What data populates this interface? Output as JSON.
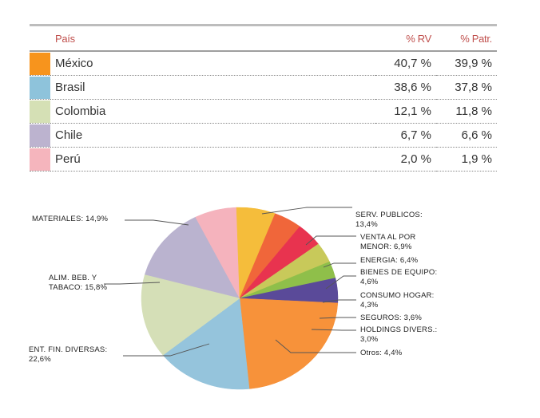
{
  "table": {
    "headers": {
      "country": "País",
      "rv": "% RV",
      "patr": "% Patr."
    },
    "rows": [
      {
        "country": "México",
        "rv": "40,7 %",
        "patr": "39,9 %",
        "color": "#f7941d"
      },
      {
        "country": "Brasil",
        "rv": "38,6 %",
        "patr": "37,8 %",
        "color": "#8ec3db"
      },
      {
        "country": "Colombia",
        "rv": "12,1 %",
        "patr": "11,8 %",
        "color": "#d5e0b5"
      },
      {
        "country": "Chile",
        "rv": "6,7 %",
        "patr": "6,6 %",
        "color": "#bcb3cf"
      },
      {
        "country": "Perú",
        "rv": "2,0 %",
        "patr": "1,9 %",
        "color": "#f5b5bd"
      }
    ]
  },
  "chart_data": {
    "type": "pie",
    "title": "",
    "slices": [
      {
        "label": [
          "SERV. PUBLICOS:",
          "13,4%"
        ],
        "value": 13.4,
        "color": "#bab3cf"
      },
      {
        "label": [
          "VENTA AL POR",
          "MENOR: 6,9%"
        ],
        "value": 6.9,
        "color": "#f5b3bd"
      },
      {
        "label": [
          "ENERGIA: 6,4%"
        ],
        "value": 6.4,
        "color": "#f5bd3b"
      },
      {
        "label": [
          "BIENES DE EQUIPO:",
          "4,6%"
        ],
        "value": 4.6,
        "color": "#f0663a"
      },
      {
        "label": [
          "CONSUMO HOGAR:",
          "4,3%"
        ],
        "value": 4.3,
        "color": "#e8334f"
      },
      {
        "label": [
          "SEGUROS: 3,6%"
        ],
        "value": 3.6,
        "color": "#c8c95a"
      },
      {
        "label": [
          "HOLDINGS DIVERS.:",
          "3,0%"
        ],
        "value": 3.0,
        "color": "#8fbf4a"
      },
      {
        "label": [
          "Otros: 4,4%"
        ],
        "value": 4.4,
        "color": "#5a4a99"
      },
      {
        "label": [
          "ENT. FIN. DIVERSAS:",
          "22,6%"
        ],
        "value": 22.6,
        "color": "#f7923a"
      },
      {
        "label": [
          "ALIM. BEB. Y",
          "TABACO: 15,8%"
        ],
        "value": 15.8,
        "color": "#95c4dc"
      },
      {
        "label": [
          "MATERIALES: 14,9%"
        ],
        "value": 14.9,
        "color": "#d5dfb7"
      }
    ]
  }
}
